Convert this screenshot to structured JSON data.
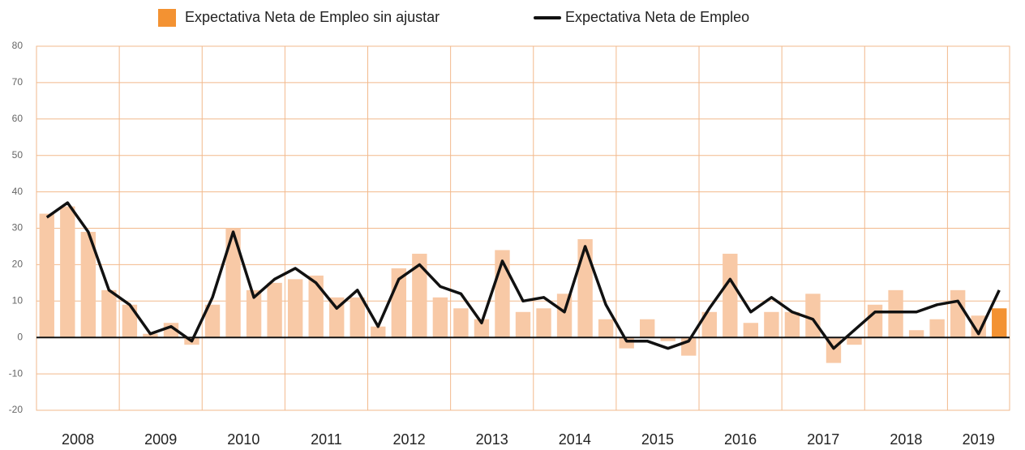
{
  "chart_data": {
    "type": "bar_line",
    "categories": [
      "2008",
      null,
      null,
      null,
      "2009",
      null,
      null,
      null,
      "2010",
      null,
      null,
      null,
      "2011",
      null,
      null,
      null,
      "2012",
      null,
      null,
      null,
      "2013",
      null,
      null,
      null,
      "2014",
      null,
      null,
      null,
      "2015",
      null,
      null,
      null,
      "2016",
      null,
      null,
      null,
      "2017",
      null,
      null,
      null,
      "2018",
      null,
      null,
      null,
      "2019",
      null,
      null
    ],
    "series": [
      {
        "name": "Expectativa Neta de Empleo sin ajustar",
        "type": "bar",
        "color": "#f39232",
        "colors": [
          "#f8c9a6",
          "#f8c9a6",
          "#f8c9a6",
          "#f8c9a6",
          "#f8c9a6",
          "#f8c9a6",
          "#f8c9a6",
          "#f8c9a6",
          "#f8c9a6",
          "#f8c9a6",
          "#f8c9a6",
          "#f8c9a6",
          "#f8c9a6",
          "#f8c9a6",
          "#f8c9a6",
          "#f8c9a6",
          "#f8c9a6",
          "#f8c9a6",
          "#f8c9a6",
          "#f8c9a6",
          "#f8c9a6",
          "#f8c9a6",
          "#f8c9a6",
          "#f8c9a6",
          "#f8c9a6",
          "#f8c9a6",
          "#f8c9a6",
          "#f8c9a6",
          "#f8c9a6",
          "#f8c9a6",
          "#f8c9a6",
          "#f8c9a6",
          "#f8c9a6",
          "#f8c9a6",
          "#f8c9a6",
          "#f8c9a6",
          "#f8c9a6",
          "#f8c9a6",
          "#f8c9a6",
          "#f8c9a6",
          "#f8c9a6",
          "#f8c9a6",
          "#f8c9a6",
          "#f8c9a6",
          "#f8c9a6",
          "#f8c9a6",
          "#f39232"
        ],
        "values": [
          34,
          36,
          29,
          13,
          9,
          1,
          4,
          -2,
          9,
          30,
          13,
          15,
          16,
          17,
          11,
          11,
          3,
          19,
          23,
          11,
          8,
          5,
          24,
          7,
          8,
          12,
          27,
          5,
          -3,
          5,
          -1,
          -5,
          7,
          23,
          4,
          7,
          7,
          12,
          -7,
          -2,
          9,
          13,
          2,
          5,
          13,
          6,
          8
        ]
      },
      {
        "name": "Expectativa Neta de Empleo",
        "type": "line",
        "color": "#111111",
        "values": [
          33,
          37,
          29,
          13,
          9,
          1,
          3,
          -1,
          11,
          29,
          11,
          16,
          19,
          15,
          8,
          13,
          3,
          16,
          20,
          14,
          12,
          4,
          21,
          10,
          11,
          7,
          25,
          9,
          -1,
          -1,
          -3,
          -1,
          8,
          16,
          7,
          11,
          7,
          5,
          -3,
          2,
          7,
          7,
          7,
          9,
          10,
          1,
          13
        ]
      }
    ],
    "ylim": [
      -20,
      80
    ],
    "yticks": [
      -20,
      -10,
      0,
      10,
      20,
      30,
      40,
      50,
      60,
      70,
      80
    ],
    "grid": true
  }
}
